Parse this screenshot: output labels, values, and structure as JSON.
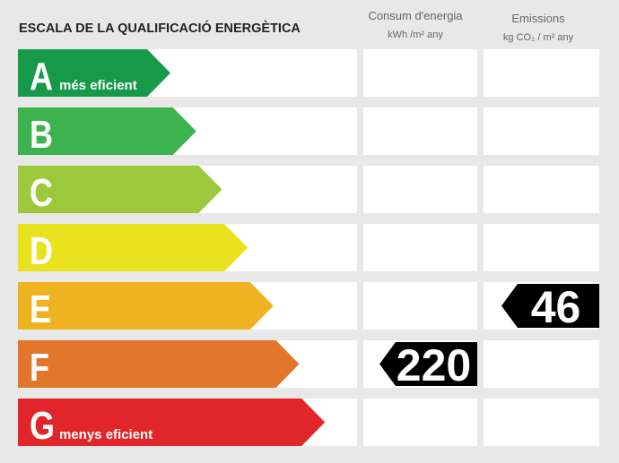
{
  "header": {
    "title": "ESCALA DE LA QUALIFICACIÓ ENERGÈTICA",
    "columns": [
      {
        "title": "Consum d'energia",
        "unit": "kWh /m² any"
      },
      {
        "title": "Emissions",
        "unit": "kg CO₂ / m² any"
      }
    ]
  },
  "rows": [
    {
      "letter": "A",
      "label": "més eficient",
      "color": "#17994a",
      "consumption": null,
      "emissions": null
    },
    {
      "letter": "B",
      "label": null,
      "color": "#3db34f",
      "consumption": null,
      "emissions": null
    },
    {
      "letter": "C",
      "label": null,
      "color": "#9cc83c",
      "consumption": null,
      "emissions": null
    },
    {
      "letter": "D",
      "label": null,
      "color": "#e8e21f",
      "consumption": null,
      "emissions": null
    },
    {
      "letter": "E",
      "label": null,
      "color": "#efb321",
      "consumption": null,
      "emissions": 46
    },
    {
      "letter": "F",
      "label": null,
      "color": "#e2762a",
      "consumption": 220,
      "emissions": null
    },
    {
      "letter": "G",
      "label": "menys eficient",
      "color": "#e0262a",
      "consumption": null,
      "emissions": null
    }
  ]
}
